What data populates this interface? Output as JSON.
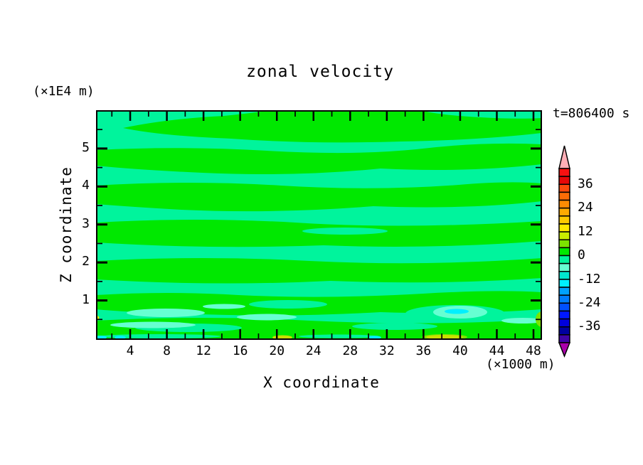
{
  "figure": {
    "title": "zonal velocity",
    "time_label": "t=806400 s",
    "y_axis_unit": "(×1E4 m)",
    "x_axis_unit": "(×1000 m)",
    "x_axis_label": "X coordinate",
    "y_axis_label": "Z coordinate"
  },
  "chart_data": {
    "type": "filled-contour",
    "title": "zonal velocity",
    "time_label": "t=806400 s",
    "xlabel": "X coordinate",
    "x_unit": "(×1000 m)",
    "x_ticks": [
      4,
      8,
      12,
      16,
      20,
      24,
      28,
      32,
      36,
      40,
      44,
      48
    ],
    "x_minor_step": 2,
    "x_range": [
      0,
      49
    ],
    "ylabel": "Z coordinate",
    "y_unit": "(×1E4 m)",
    "y_ticks": [
      1,
      2,
      3,
      4,
      5
    ],
    "y_minor_step": 0.5,
    "y_range": [
      0,
      6
    ],
    "grid": false,
    "legend_position": "right-colorbar",
    "colorbar": {
      "tick_labels": [
        "36",
        "24",
        "12",
        "0",
        "-12",
        "-24",
        "-36"
      ],
      "level_min": -44,
      "level_max": 44,
      "level_step": 4,
      "segment_colors_top_to_bottom": [
        "#f91111",
        "#e60808",
        "#fb4a0c",
        "#fc6c06",
        "#fd8c03",
        "#feaa01",
        "#fec900",
        "#ffe800",
        "#c9ec00",
        "#7ce200",
        "#00e800",
        "#00f49c",
        "#66ffd2",
        "#00e6cf",
        "#00f0ff",
        "#00a2ff",
        "#007dff",
        "#0050ff",
        "#0018ff",
        "#0000dc",
        "#0000a0",
        "#4004a8"
      ],
      "over_arrow_color": "#ffaeb6",
      "under_arrow_color": "#aa00aa"
    },
    "plot_palette": {
      "band_minus4_0_background": "#00f49c",
      "band_0_4": "#00e800",
      "band_minus8_minus4": "#66ffd2",
      "band_cyan_strips": "#00f0ff",
      "band_4_8": "#7ce200",
      "band_8_12": "#c9e000",
      "band_yellow_dot": "#e8e800"
    },
    "field_summary": "Filled contour field (interval 4). Nearly the whole section alternates between the -4..0 band (mint) and the 0..4 band (green) in wavy horizontal layers; small -8..-4 lenses and thin stronger-negative strips appear near the bottom boundary, with a few small positive (4..12) patches along the bottom edge and right edge."
  }
}
